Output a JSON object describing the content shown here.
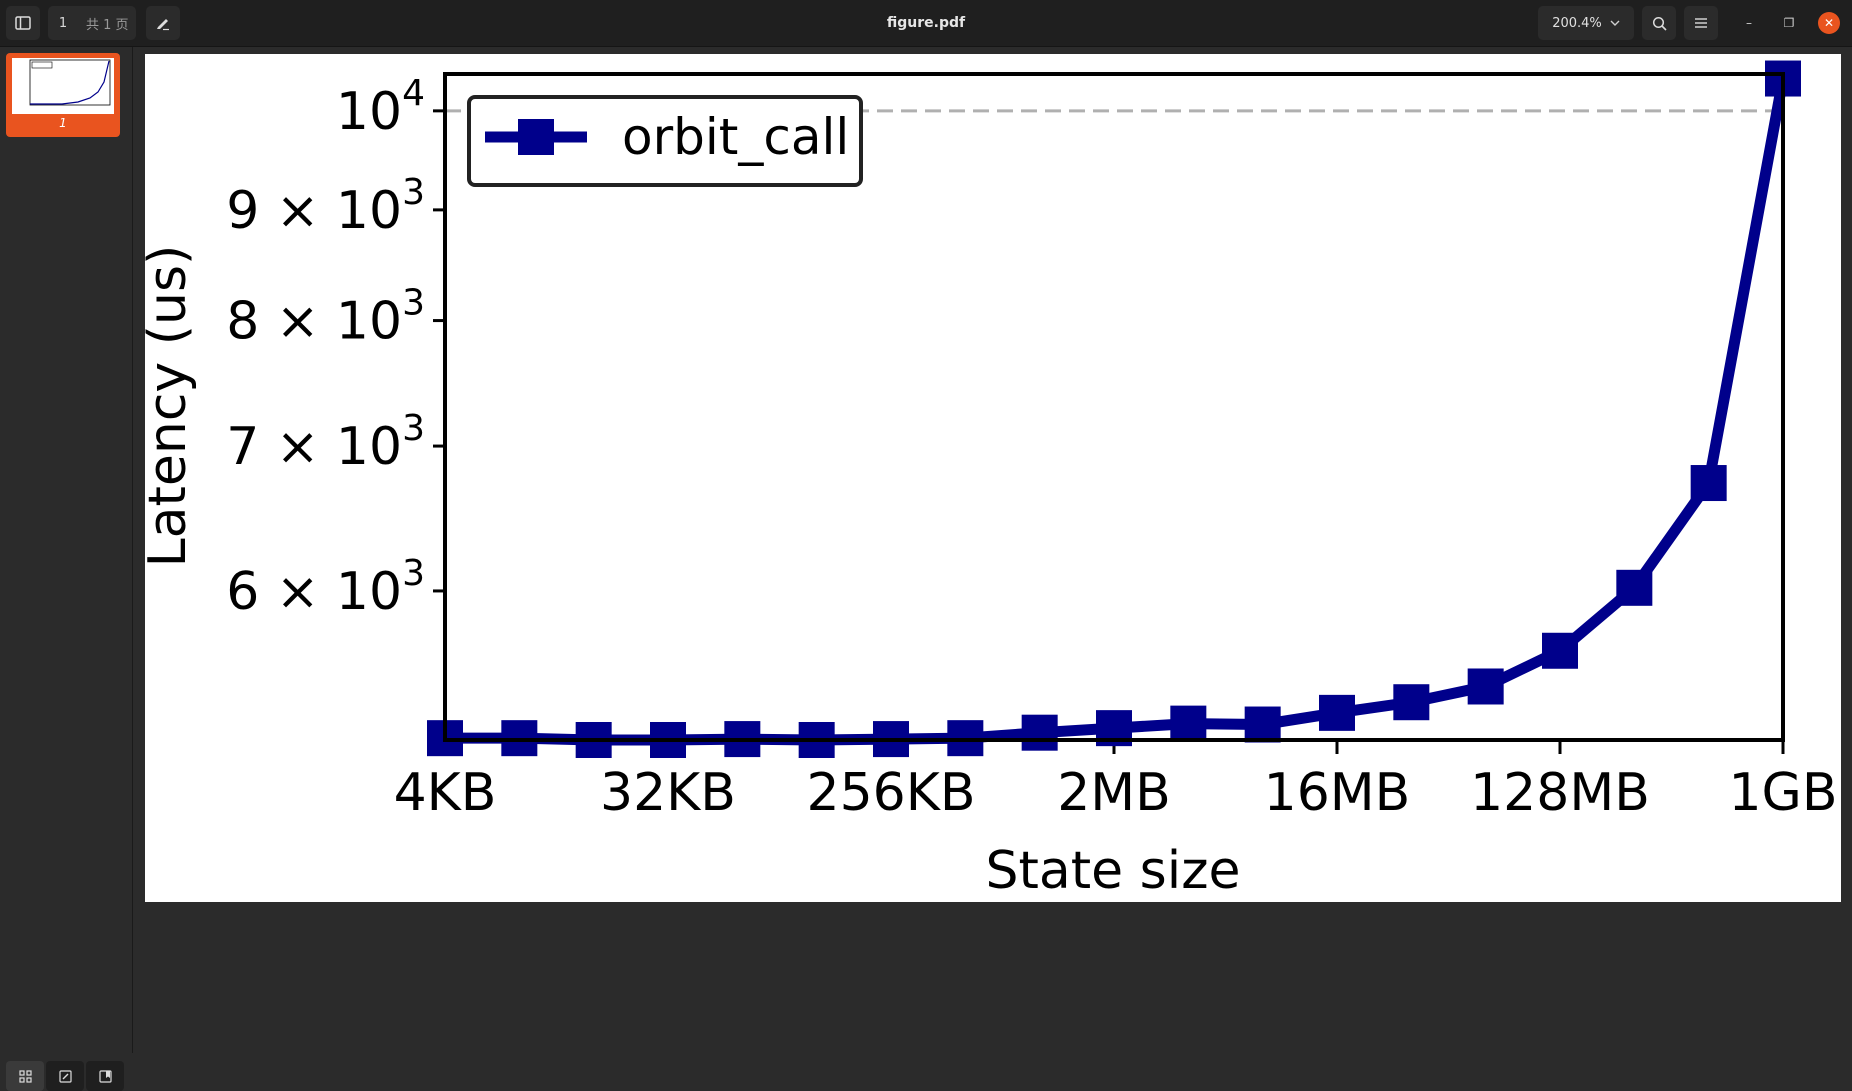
{
  "window": {
    "title": "figure.pdf",
    "page_current": "1",
    "page_total": "共 1 页",
    "zoom": "200.4%"
  },
  "toolbar": {
    "sidebar_toggle_icon": "sidebar-icon",
    "annotate_icon": "pen-icon",
    "search_icon": "search-icon",
    "menu_icon": "hamburger-icon",
    "minimize_glyph": "–",
    "restore_glyph": "❐",
    "close_glyph": "✕"
  },
  "sidebar": {
    "thumbnail_label": "1",
    "accent": "#e9541f"
  },
  "chart_data": {
    "type": "line",
    "xlabel": "State size",
    "ylabel": "Latency (us)",
    "x_tick_labels": [
      "4KB",
      "32KB",
      "256KB",
      "2MB",
      "16MB",
      "128MB",
      "1GB"
    ],
    "x": [
      "4KB",
      "8KB",
      "16KB",
      "32KB",
      "64KB",
      "128KB",
      "256KB",
      "512KB",
      "1MB",
      "2MB",
      "4MB",
      "8MB",
      "16MB",
      "32MB",
      "64MB",
      "128MB",
      "256MB",
      "512MB",
      "1GB"
    ],
    "y_scale": "log",
    "ylim": [
      5120,
      10400
    ],
    "y_ticks": [
      {
        "value": 6000,
        "mant": "6",
        "exp": "3"
      },
      {
        "value": 7000,
        "mant": "7",
        "exp": "3"
      },
      {
        "value": 8000,
        "mant": "8",
        "exp": "3"
      },
      {
        "value": 9000,
        "mant": "9",
        "exp": "3"
      },
      {
        "value": 10000,
        "mant": "",
        "exp": "4"
      }
    ],
    "reference_line": 10000,
    "series": [
      {
        "name": "orbit_call",
        "color": "#00008b",
        "marker": "square",
        "values": [
          5130,
          5130,
          5120,
          5120,
          5125,
          5120,
          5125,
          5130,
          5160,
          5185,
          5210,
          5205,
          5270,
          5330,
          5420,
          5630,
          6020,
          6730,
          10350
        ]
      }
    ],
    "legend_position": "top-left",
    "grid": false
  }
}
